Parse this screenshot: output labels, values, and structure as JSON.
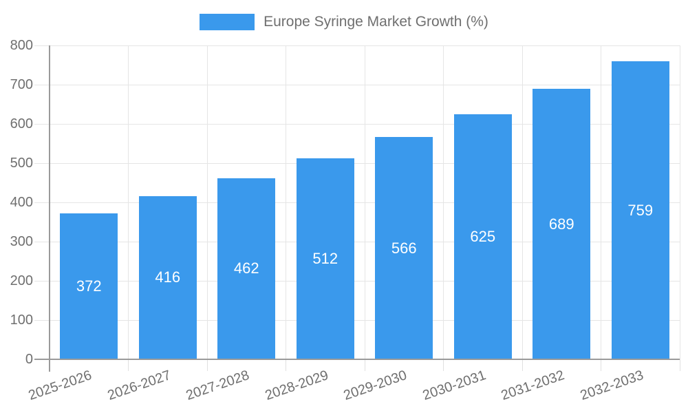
{
  "window": {
    "background": "#ffffff"
  },
  "legend": {
    "label": "Europe Syringe Market Growth (%)"
  },
  "colors": {
    "bar": "#3A99EC",
    "grid": "#e5e5e5",
    "axis": "#9a9a9a",
    "tick_text": "#6f6f6f",
    "value_text": "#ffffff"
  },
  "chart_data": {
    "type": "bar",
    "title": "Europe Syringe Market Growth (%)",
    "categories": [
      "2025-2026",
      "2026-2027",
      "2027-2028",
      "2028-2029",
      "2029-2030",
      "2030-2031",
      "2031-2032",
      "2032-2033"
    ],
    "values": [
      372,
      416,
      462,
      512,
      566,
      625,
      689,
      759
    ],
    "value_labels": [
      "372",
      "416",
      "462",
      "512",
      "566",
      "625",
      "689",
      "759"
    ],
    "xlabel": "",
    "ylabel": "",
    "ylim": [
      0,
      800
    ],
    "ytick_interval": 100,
    "y_ticks": [
      "0",
      "100",
      "200",
      "300",
      "400",
      "500",
      "600",
      "700",
      "800"
    ],
    "grid": true,
    "legend_position": "top-center",
    "bar_color": "#3A99EC",
    "value_label_color": "#ffffff",
    "value_label_position": "inside-middle",
    "x_label_rotation_deg": -19
  }
}
